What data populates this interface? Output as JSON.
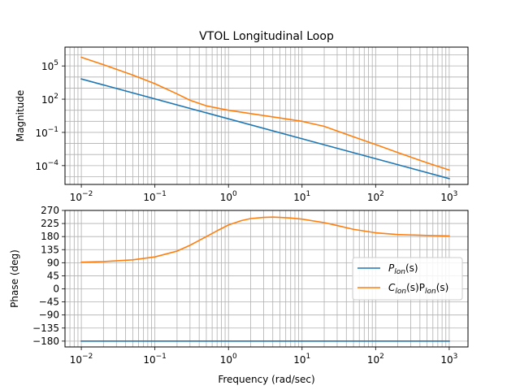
{
  "chart_data": [
    {
      "type": "line",
      "title": "VTOL Longitudinal Loop",
      "xlabel": "",
      "ylabel": "Magnitude",
      "xscale": "log",
      "yscale": "log",
      "xlim": [
        0.006,
        1800
      ],
      "ylim": [
        2e-06,
        5000000
      ],
      "grid": "on (major and minor)",
      "x_ticks": [
        {
          "value": 0.01,
          "base": "10",
          "exp": "−2"
        },
        {
          "value": 0.1,
          "base": "10",
          "exp": "−1"
        },
        {
          "value": 1,
          "base": "10",
          "exp": "0"
        },
        {
          "value": 10,
          "base": "10",
          "exp": "1"
        },
        {
          "value": 100,
          "base": "10",
          "exp": "2"
        },
        {
          "value": 1000,
          "base": "10",
          "exp": "3"
        }
      ],
      "y_ticks": [
        {
          "value": 100000,
          "base": "10",
          "exp": "5"
        },
        {
          "value": 100,
          "base": "10",
          "exp": "2"
        },
        {
          "value": 0.1,
          "base": "10",
          "exp": "−1"
        },
        {
          "value": 0.0001,
          "base": "10",
          "exp": "−4"
        }
      ],
      "series": [
        {
          "color": "#1f77b4",
          "x": [
            0.01,
            1000
          ],
          "y": [
            6670,
            6.67e-06
          ]
        },
        {
          "color": "#ff7f0e",
          "x": [
            0.01,
            0.02,
            0.05,
            0.1,
            0.2,
            0.3,
            0.5,
            1,
            2,
            5,
            10,
            20,
            50,
            100,
            200,
            500,
            1000
          ],
          "y": [
            600000,
            130000,
            15000,
            2500,
            300,
            80,
            25,
            10,
            5,
            2,
            1,
            0.35,
            0.04,
            0.008,
            0.0015,
            0.00018,
            4e-05
          ]
        }
      ]
    },
    {
      "type": "line",
      "title": "",
      "xlabel": "Frequency (rad/sec)",
      "ylabel": "Phase (deg)",
      "xscale": "log",
      "xlim": [
        0.006,
        1800
      ],
      "ylim": [
        -200,
        270
      ],
      "grid": "on (major and minor)",
      "legend": "center-right",
      "x_ticks": [
        {
          "value": 0.01,
          "base": "10",
          "exp": "−2"
        },
        {
          "value": 0.1,
          "base": "10",
          "exp": "−1"
        },
        {
          "value": 1,
          "base": "10",
          "exp": "0"
        },
        {
          "value": 10,
          "base": "10",
          "exp": "1"
        },
        {
          "value": 100,
          "base": "10",
          "exp": "2"
        },
        {
          "value": 1000,
          "base": "10",
          "exp": "3"
        }
      ],
      "y_ticks": [
        {
          "value": 270,
          "label": "270"
        },
        {
          "value": 225,
          "label": "225"
        },
        {
          "value": 180,
          "label": "180"
        },
        {
          "value": 135,
          "label": "135"
        },
        {
          "value": 90,
          "label": "90"
        },
        {
          "value": 45,
          "label": "45"
        },
        {
          "value": 0,
          "label": "0"
        },
        {
          "value": -45,
          "label": "−45"
        },
        {
          "value": -90,
          "label": "−90"
        },
        {
          "value": -135,
          "label": "−135"
        },
        {
          "value": -180,
          "label": "−180"
        }
      ],
      "series": [
        {
          "name": "P_lon(s)",
          "legend_main": "P",
          "legend_sub": "lon",
          "legend_tail": "(s)",
          "color": "#1f77b4",
          "x": [
            0.01,
            1000
          ],
          "y": [
            -180,
            -180
          ]
        },
        {
          "name": "C_lon(s)P_lon(s)",
          "legend_c": "C",
          "legend_c_sub": "lon",
          "legend_mid": "(s)P",
          "legend_p_sub": "lon",
          "legend_tail": "(s)",
          "color": "#ff7f0e",
          "x": [
            0.01,
            0.02,
            0.05,
            0.1,
            0.2,
            0.3,
            0.5,
            0.7,
            1,
            1.5,
            2,
            3,
            4,
            5,
            7,
            10,
            20,
            30,
            50,
            100,
            200,
            500,
            1000
          ],
          "y": [
            92,
            94,
            100,
            110,
            130,
            150,
            180,
            200,
            220,
            235,
            242,
            246,
            247,
            246,
            244,
            240,
            228,
            218,
            205,
            193,
            187,
            184,
            182
          ]
        }
      ]
    }
  ]
}
